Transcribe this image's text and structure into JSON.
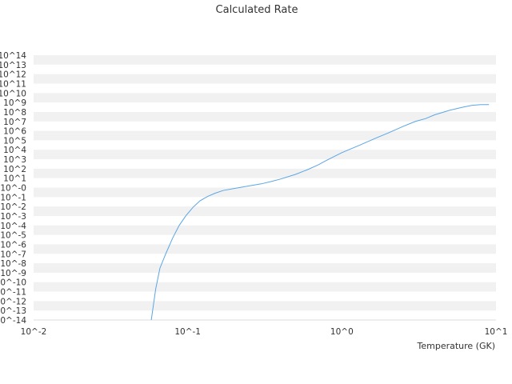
{
  "chart_data": {
    "type": "line",
    "title": "Calculated Rate",
    "xlabel": "Temperature (GK)",
    "ylabel": "",
    "x_scale": "log",
    "y_scale": "log",
    "xlim": [
      0.01,
      10
    ],
    "ylim": [
      1e-14,
      100000000000000.0
    ],
    "x_ticks": [
      "10^-2",
      "10^-1",
      "10^0",
      "10^1"
    ],
    "y_ticks": [
      "10^-14",
      "10^-13",
      "10^-12",
      "10^-11",
      "10^-10",
      "10^-9",
      "10^-8",
      "10^-7",
      "10^-6",
      "10^-5",
      "10^-4",
      "10^-3",
      "10^-2",
      "10^-1",
      "10^-0",
      "10^1",
      "10^2",
      "10^3",
      "10^4",
      "10^5",
      "10^6",
      "10^7",
      "10^8",
      "10^9",
      "10^10",
      "10^11",
      "10^12",
      "10^13",
      "10^14"
    ],
    "grid": "horizontal alternating bands",
    "legend": "none",
    "line_color": "#5aa6e6",
    "band_color": "#f1f1f1",
    "series": [
      {
        "x": [
          0.058,
          0.062,
          0.066,
          0.072,
          0.08,
          0.088,
          0.097,
          0.108,
          0.12,
          0.135,
          0.15,
          0.17,
          0.2,
          0.25,
          0.3,
          0.35,
          0.4,
          0.5,
          0.6,
          0.7,
          0.8,
          1.0,
          1.3,
          1.7,
          2.0,
          2.5,
          3.0,
          3.5,
          4.0,
          5.0,
          6.0,
          7.0,
          8.0,
          9.0
        ],
        "y": [
          1e-14,
          2e-11,
          3e-09,
          1e-07,
          5e-06,
          0.0001,
          0.001,
          0.008,
          0.04,
          0.12,
          0.25,
          0.5,
          0.8,
          1.5,
          2.5,
          4.5,
          8,
          25,
          80,
          250,
          800,
          5000,
          30000.0,
          200000.0,
          600000.0,
          3000000.0,
          10000000.0,
          20000000.0,
          50000000.0,
          150000000.0,
          300000000.0,
          500000000.0,
          600000000.0,
          600000000.0
        ]
      }
    ]
  }
}
